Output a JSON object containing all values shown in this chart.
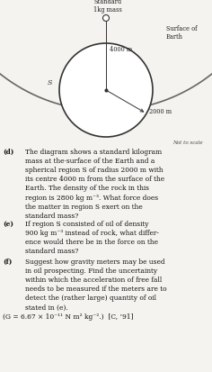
{
  "bg_color": "#f5f3ef",
  "diagram_bg": "#ffffff",
  "earth_arc_color": "#666666",
  "earth_arc_linewidth": 1.2,
  "sphere_edge_color": "#333333",
  "sphere_linewidth": 1.2,
  "mass_label": "Standard\n1kg mass",
  "earth_label": "Surface of\nEarth",
  "label_4000": "4000 m",
  "label_2000": "2000 m",
  "label_S": "S",
  "not_to_scale": "Not to scale",
  "font_size_diagram": 4.8,
  "font_size_questions": 5.4,
  "questions": [
    {
      "label": "(d)",
      "text": "The diagram shows a standard kilogram\nmass at the·surface of the Earth and a\nspherical region S of radius 2000 m with\nits centre 4000 m from the surface of the\nEarth. The density of the rock in this\nregion is 2800 kg m⁻³. What force does\nthe matter in region S exert on the\nstandard mass?"
    },
    {
      "label": "(e)",
      "text": "If region S consisted of oil of density\n900 kg m⁻³ instead of rock, what differ-\nence would there be in the force on the\nstandard mass?"
    },
    {
      "label": "(f)",
      "text": "Suggest how gravity meters may be used\nin oil prospecting. Find the uncertainty\nwithin which the acceleration of free fall\nneeds to be measured if the meters are to\ndetect the (rather large) quantity of oil\nstated in (e)."
    },
    {
      "label": "",
      "text": "(G = 6.67 × 10⁻¹¹ N m² kg⁻².)  [C, ’91]"
    }
  ]
}
